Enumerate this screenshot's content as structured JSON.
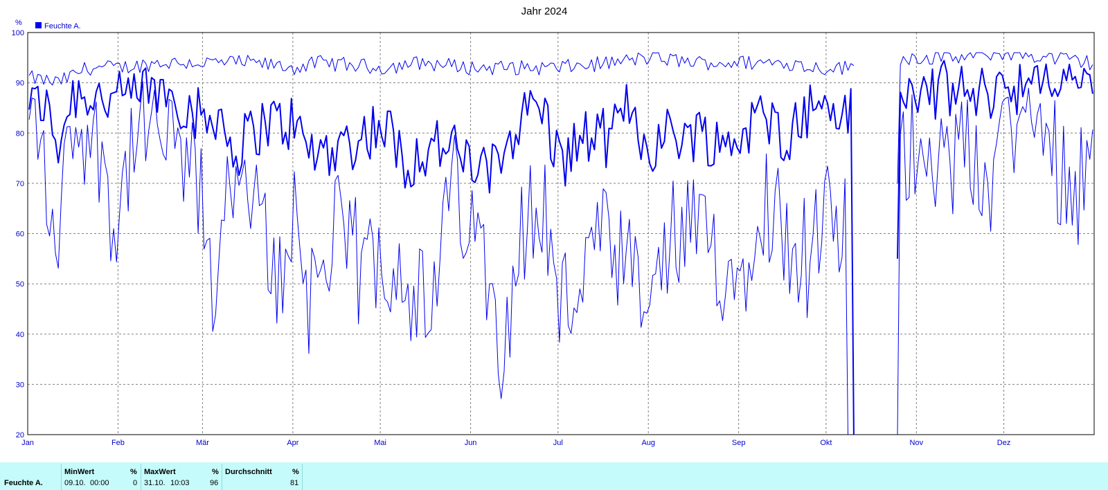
{
  "chart_data": {
    "type": "line",
    "title": "Jahr 2024",
    "ylabel": "%",
    "ylim": [
      20,
      100
    ],
    "yticks": [
      20,
      30,
      40,
      50,
      60,
      70,
      80,
      90,
      100
    ],
    "x_labels": [
      "Jan",
      "Feb",
      "Mär",
      "Apr",
      "Mai",
      "Jun",
      "Jul",
      "Aug",
      "Sep",
      "Okt",
      "Nov",
      "Dez"
    ],
    "grid": true,
    "legend": {
      "position": "top-left",
      "entries": [
        "Feuchte A."
      ]
    },
    "colors": {
      "series": "#0000ee",
      "axis": "#000000",
      "grid": "#808080",
      "label": "#0000cc"
    },
    "series": [
      {
        "name": "Feuchte A.",
        "gap": [
          [
            283,
            298
          ]
        ],
        "max_anchors": [
          [
            0,
            91
          ],
          [
            10,
            90
          ],
          [
            20,
            93
          ],
          [
            31,
            93
          ],
          [
            45,
            94
          ],
          [
            60,
            94
          ],
          [
            75,
            94
          ],
          [
            91,
            93
          ],
          [
            100,
            94
          ],
          [
            121,
            93
          ],
          [
            135,
            94
          ],
          [
            152,
            93
          ],
          [
            160,
            93
          ],
          [
            182,
            93
          ],
          [
            200,
            94
          ],
          [
            213,
            95
          ],
          [
            230,
            94
          ],
          [
            244,
            94
          ],
          [
            260,
            94
          ],
          [
            270,
            93
          ],
          [
            281,
            93
          ],
          [
            285,
            93
          ],
          [
            299,
            95
          ],
          [
            305,
            95
          ],
          [
            320,
            95
          ],
          [
            335,
            96
          ],
          [
            350,
            95
          ],
          [
            365,
            94
          ]
        ],
        "avg_anchors": [
          [
            0,
            87
          ],
          [
            5,
            86
          ],
          [
            10,
            78
          ],
          [
            15,
            88
          ],
          [
            22,
            88
          ],
          [
            30,
            86
          ],
          [
            40,
            89
          ],
          [
            50,
            88
          ],
          [
            60,
            82
          ],
          [
            65,
            85
          ],
          [
            70,
            76
          ],
          [
            80,
            82
          ],
          [
            91,
            82
          ],
          [
            96,
            76
          ],
          [
            110,
            78
          ],
          [
            121,
            82
          ],
          [
            130,
            74
          ],
          [
            140,
            78
          ],
          [
            152,
            74
          ],
          [
            158,
            71
          ],
          [
            165,
            80
          ],
          [
            175,
            87
          ],
          [
            182,
            74
          ],
          [
            190,
            79
          ],
          [
            200,
            79
          ],
          [
            206,
            86
          ],
          [
            212,
            77
          ],
          [
            220,
            80
          ],
          [
            232,
            80
          ],
          [
            238,
            77
          ],
          [
            244,
            80
          ],
          [
            252,
            83
          ],
          [
            260,
            80
          ],
          [
            270,
            86
          ],
          [
            280,
            84
          ],
          [
            283,
            83
          ],
          [
            299,
            87
          ],
          [
            305,
            88
          ],
          [
            315,
            89
          ],
          [
            325,
            87
          ],
          [
            335,
            90
          ],
          [
            345,
            89
          ],
          [
            355,
            91
          ],
          [
            365,
            93
          ]
        ],
        "min_anchors": [
          [
            0,
            86
          ],
          [
            6,
            72
          ],
          [
            8,
            54
          ],
          [
            10,
            62
          ],
          [
            15,
            85
          ],
          [
            25,
            78
          ],
          [
            30,
            60
          ],
          [
            35,
            79
          ],
          [
            45,
            80
          ],
          [
            55,
            75
          ],
          [
            60,
            62
          ],
          [
            63,
            50
          ],
          [
            70,
            75
          ],
          [
            80,
            60
          ],
          [
            85,
            50
          ],
          [
            91,
            65
          ],
          [
            96,
            48
          ],
          [
            105,
            60
          ],
          [
            115,
            52
          ],
          [
            121,
            58
          ],
          [
            130,
            52
          ],
          [
            138,
            40
          ],
          [
            145,
            72
          ],
          [
            152,
            62
          ],
          [
            160,
            48
          ],
          [
            162,
            40
          ],
          [
            170,
            62
          ],
          [
            177,
            65
          ],
          [
            182,
            44
          ],
          [
            188,
            50
          ],
          [
            195,
            58
          ],
          [
            200,
            55
          ],
          [
            209,
            48
          ],
          [
            213,
            45
          ],
          [
            222,
            60
          ],
          [
            230,
            58
          ],
          [
            238,
            55
          ],
          [
            244,
            50
          ],
          [
            250,
            70
          ],
          [
            260,
            60
          ],
          [
            268,
            55
          ],
          [
            275,
            62
          ],
          [
            280,
            60
          ],
          [
            282,
            20
          ],
          [
            299,
            72
          ],
          [
            305,
            82
          ],
          [
            315,
            74
          ],
          [
            325,
            78
          ],
          [
            330,
            68
          ],
          [
            335,
            85
          ],
          [
            345,
            83
          ],
          [
            352,
            76
          ],
          [
            360,
            68
          ],
          [
            365,
            90
          ]
        ],
        "min_value": 0,
        "max_value": 96
      }
    ]
  },
  "stats": {
    "series_label": "Feuchte A.",
    "min": {
      "header": "MinWert",
      "unit": "%",
      "date": "09.10.",
      "time": "00:00",
      "value": "0"
    },
    "max": {
      "header": "MaxWert",
      "unit": "%",
      "date": "31.10.",
      "time": "10:03",
      "value": "96"
    },
    "avg": {
      "header": "Durchschnitt",
      "unit": "%",
      "value": "81"
    }
  }
}
